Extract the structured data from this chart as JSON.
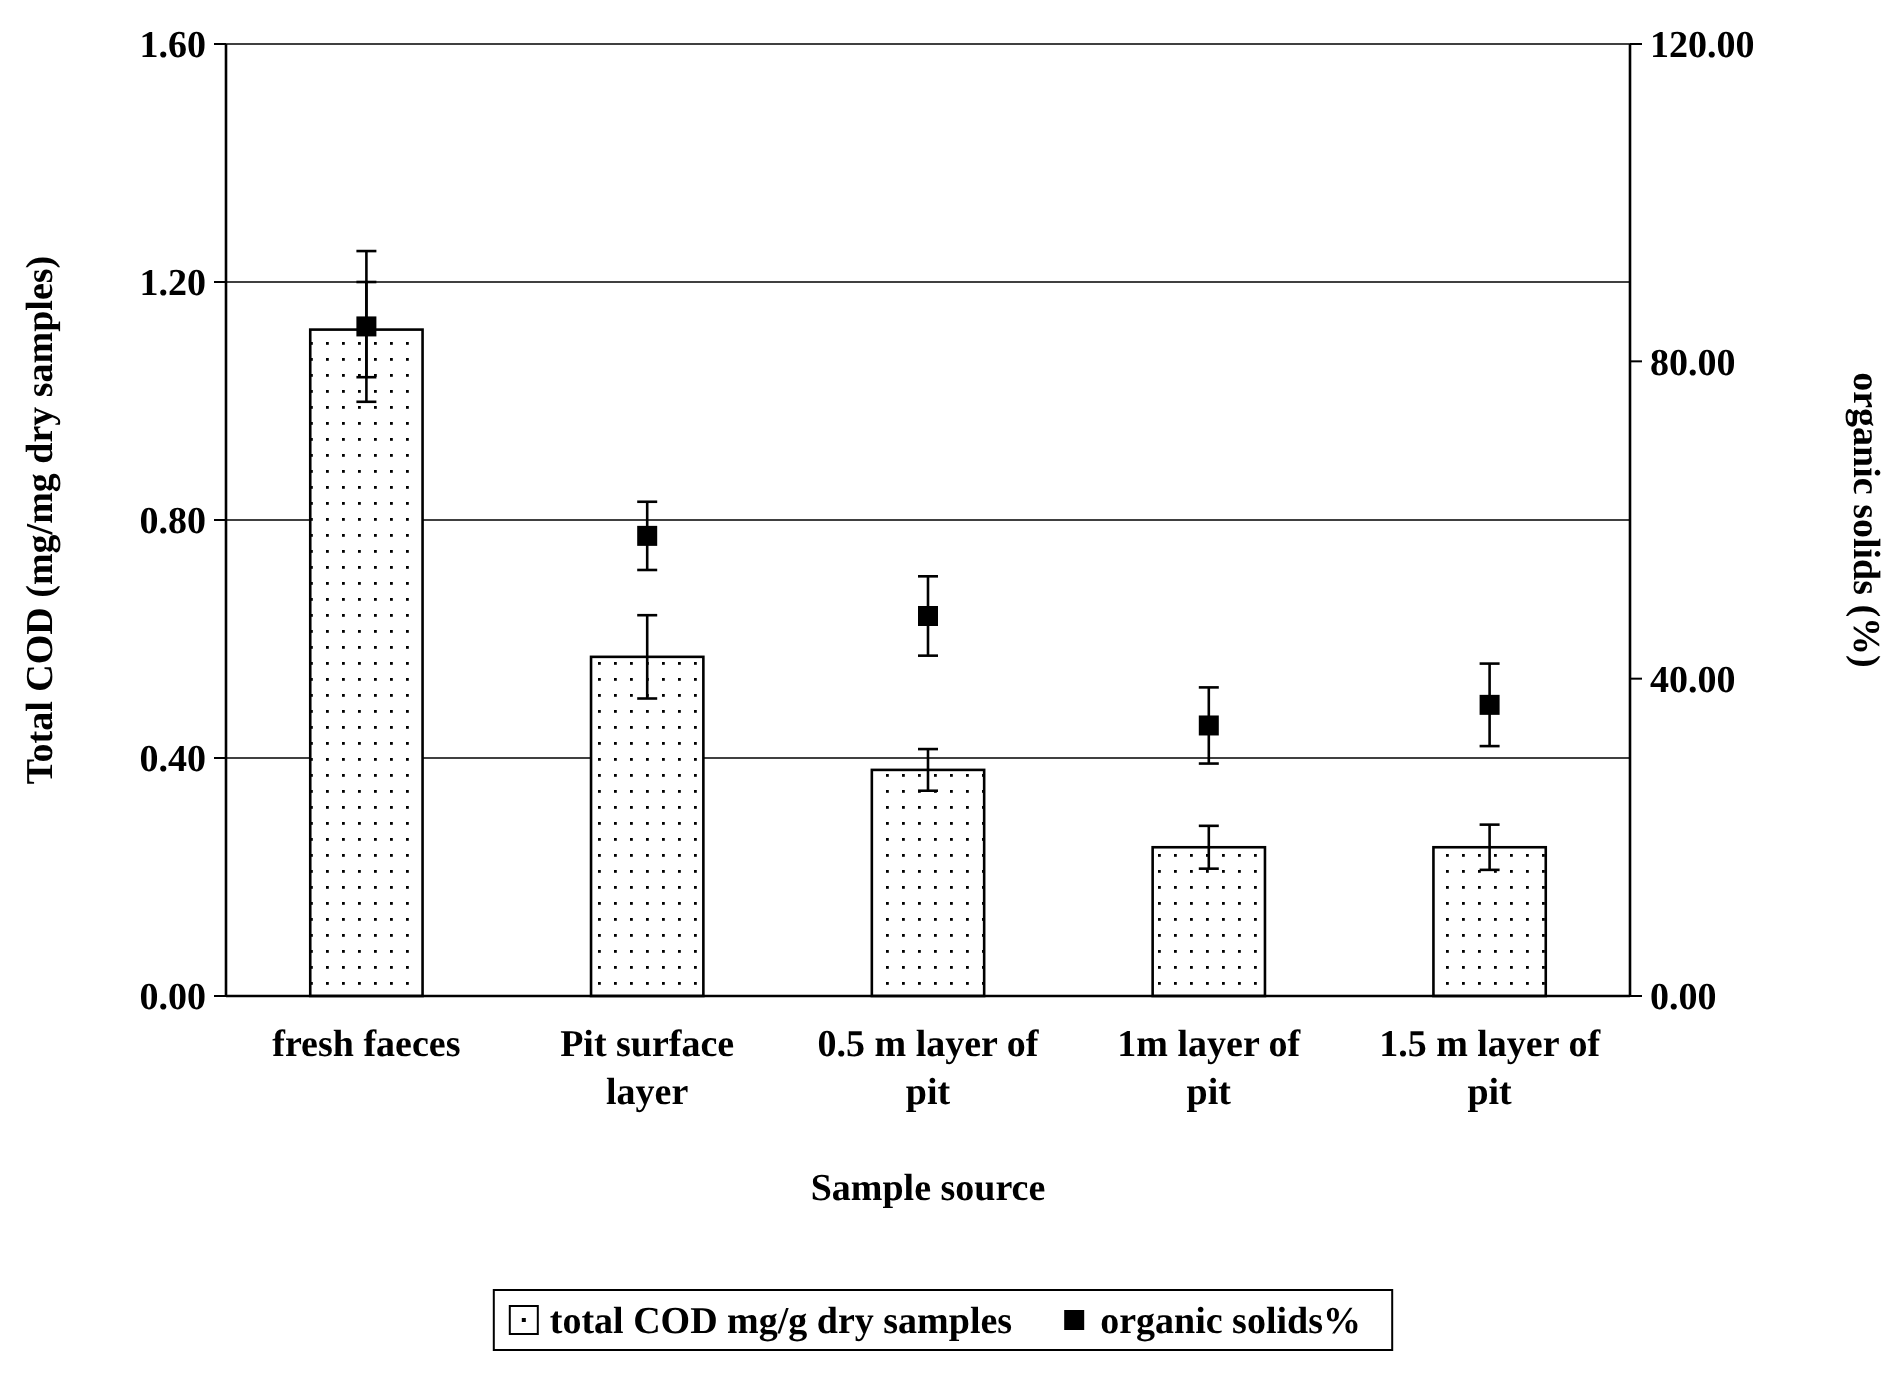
{
  "chart_data": {
    "type": "bar",
    "xlabel": "Sample source",
    "ylabel": "Total COD (mg/mg dry samples)",
    "y2label": "organic solids (%)",
    "categories": [
      "fresh faeces",
      "Pit surface layer",
      "0.5 m layer of pit",
      "1m layer of pit",
      "1.5 m layer of pit"
    ],
    "series": [
      {
        "name": "total COD mg/g dry samples",
        "color": "#ffffff",
        "values": [
          1.12,
          0.57,
          0.38,
          0.25,
          0.25
        ],
        "errors": [
          0.08,
          0.07,
          0.035,
          0.036,
          0.038
        ]
      },
      {
        "name": "organic solids%",
        "type": "scatter",
        "axis": "y2",
        "color": "#000000",
        "marker": "square",
        "x": [
          "fresh faeces",
          "Pit surface layer",
          "0.5 m layer of pit",
          "1m layer of pit",
          "1.5 m layer of pit"
        ],
        "values": [
          84.4,
          58.0,
          47.9,
          34.1,
          36.7
        ],
        "errors": [
          9.5,
          4.3,
          5,
          4.8,
          5.2
        ]
      }
    ],
    "ylim": [
      0,
      1.6
    ],
    "yticks": [
      {
        "value": 0,
        "label": "0.00"
      },
      {
        "value": 0.4,
        "label": "0.40"
      },
      {
        "value": 0.8,
        "label": "0.80"
      },
      {
        "value": 1.2,
        "label": "1.20"
      },
      {
        "value": 1.6,
        "label": "1.60"
      }
    ],
    "y2lim": [
      0,
      120
    ],
    "y2ticks": [
      {
        "value": 0,
        "label": "0.00"
      },
      {
        "value": 40,
        "label": "40.00"
      },
      {
        "value": 80,
        "label": "80.00"
      },
      {
        "value": 120,
        "label": "120.00"
      }
    ],
    "grid": "y",
    "legend": "bottom"
  }
}
